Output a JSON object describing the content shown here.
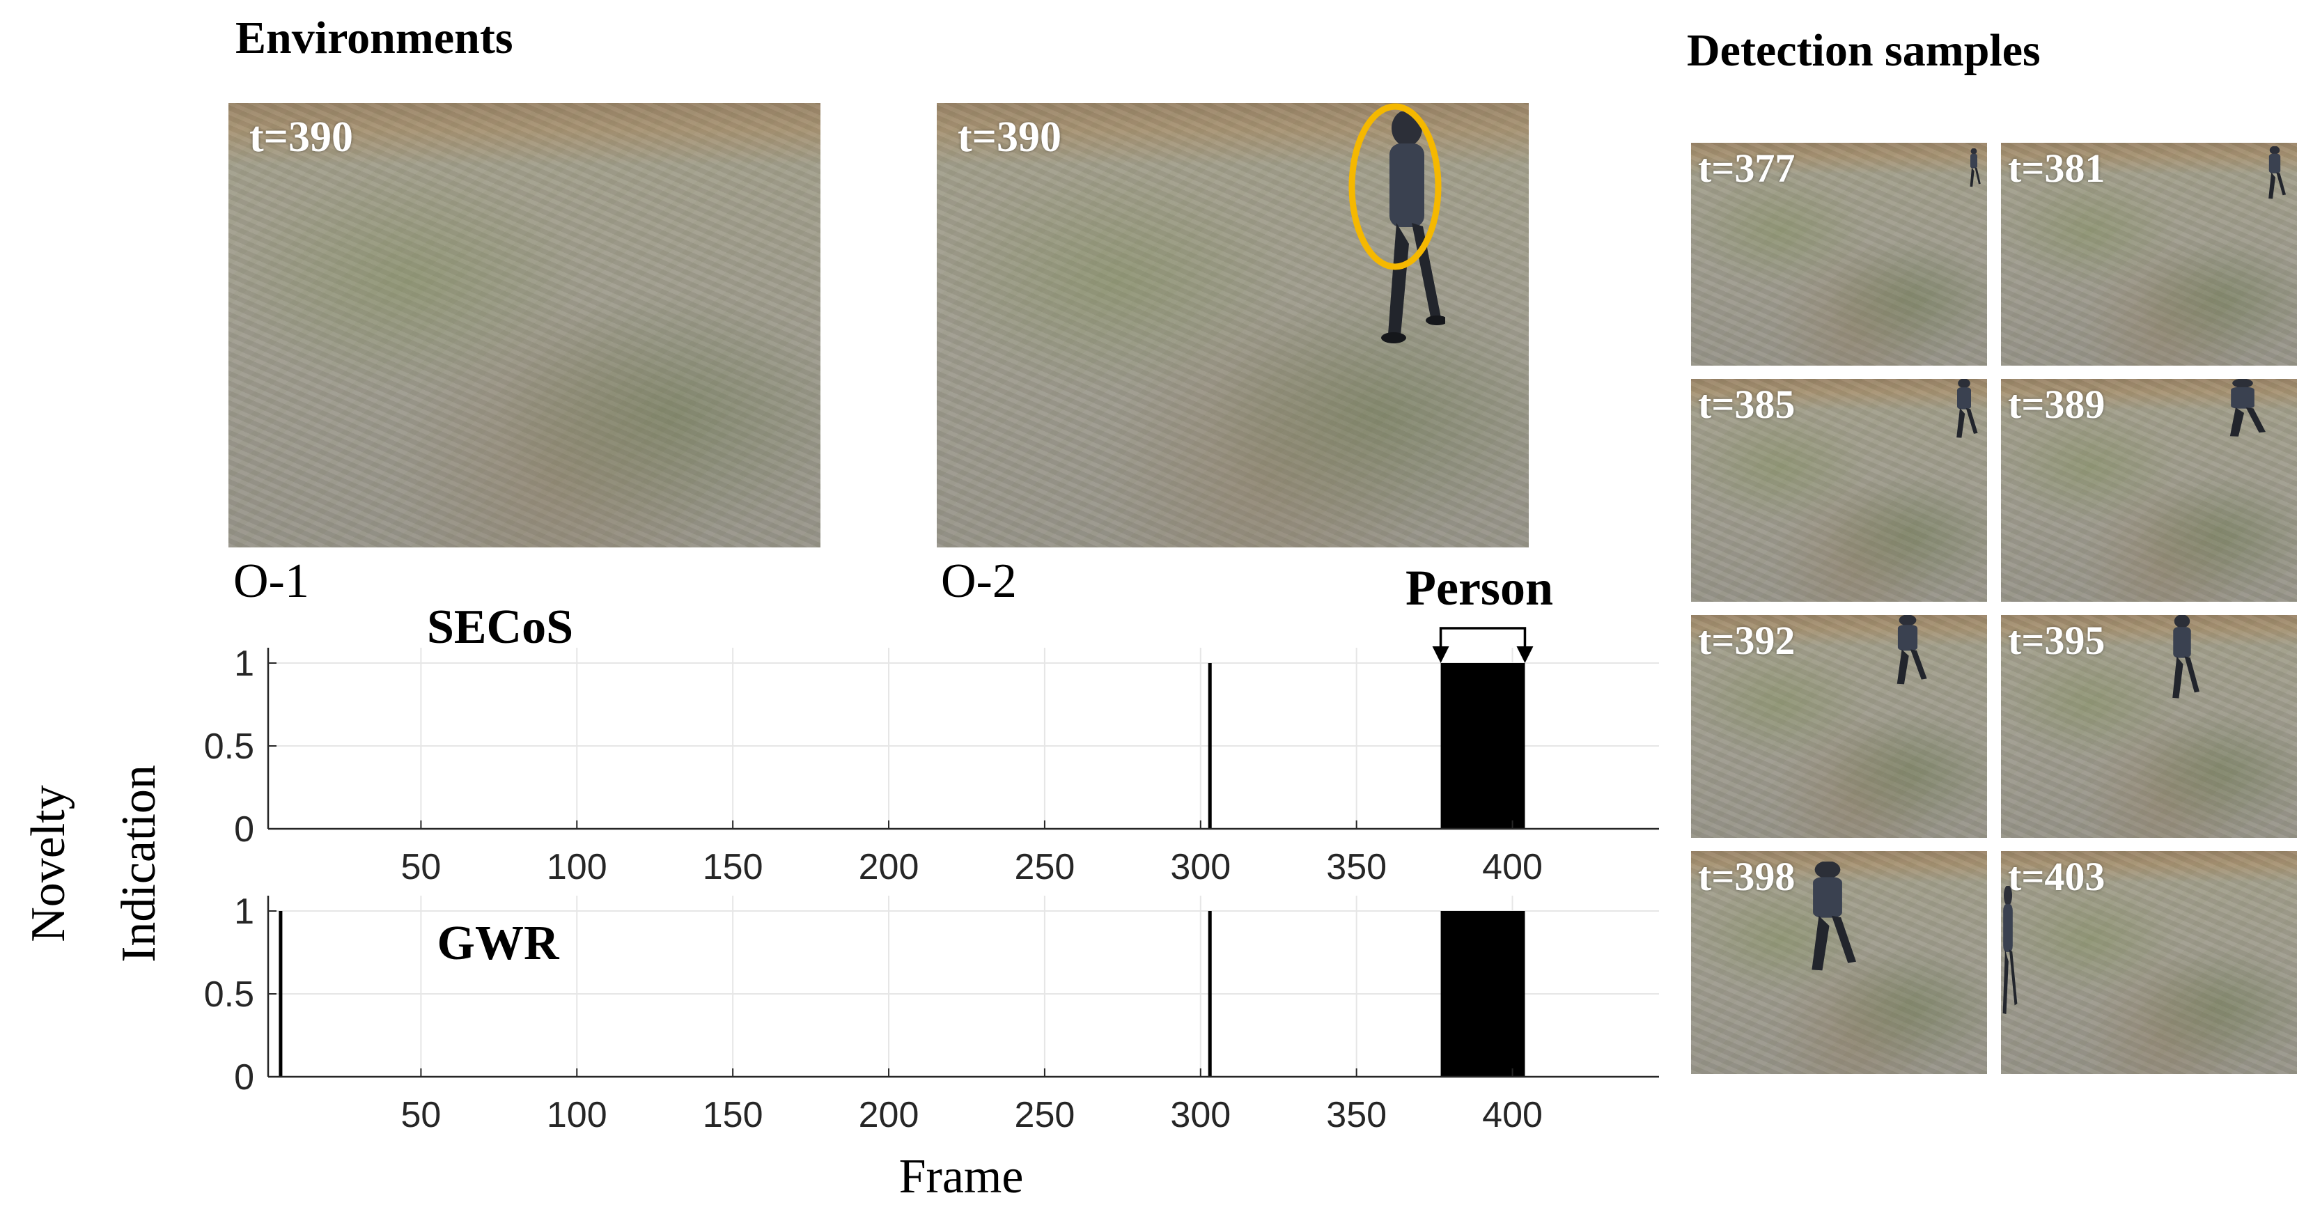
{
  "headings": {
    "environments": "Environments",
    "detection_samples": "Detection samples"
  },
  "environments": [
    {
      "caption": "O-1",
      "time_label": "t=390",
      "has_person": false
    },
    {
      "caption": "O-2",
      "time_label": "t=390",
      "has_person": true,
      "highlight_color": "#F5B800"
    }
  ],
  "detection_samples": [
    {
      "time_label": "t=377"
    },
    {
      "time_label": "t=381"
    },
    {
      "time_label": "t=385"
    },
    {
      "time_label": "t=389"
    },
    {
      "time_label": "t=392"
    },
    {
      "time_label": "t=395"
    },
    {
      "time_label": "t=398"
    },
    {
      "time_label": "t=403"
    }
  ],
  "chart_data": {
    "type": "bar",
    "annotation": {
      "text": "Person",
      "x_start": 377,
      "x_end": 404
    },
    "xlabel": "Frame",
    "ylabel": [
      "Novelty",
      "Indication"
    ],
    "xlim": [
      1,
      447
    ],
    "ylim": [
      0,
      1
    ],
    "x_ticks": [
      50,
      100,
      150,
      200,
      250,
      300,
      350,
      400
    ],
    "y_ticks": [
      0,
      0.5,
      1
    ],
    "y_tick_labels": [
      "0",
      "0.5",
      "1"
    ],
    "grid": true,
    "colors": {
      "bars": "#000000",
      "grid": "#e6e6e6",
      "axis": "#262626"
    },
    "panels": [
      {
        "label": "SECoS",
        "spikes": [
          303
        ],
        "novelty_intervals": [
          [
            377,
            404
          ]
        ]
      },
      {
        "label": "GWR",
        "spikes": [
          5,
          303
        ],
        "novelty_intervals": [
          [
            377,
            404
          ]
        ]
      }
    ]
  }
}
